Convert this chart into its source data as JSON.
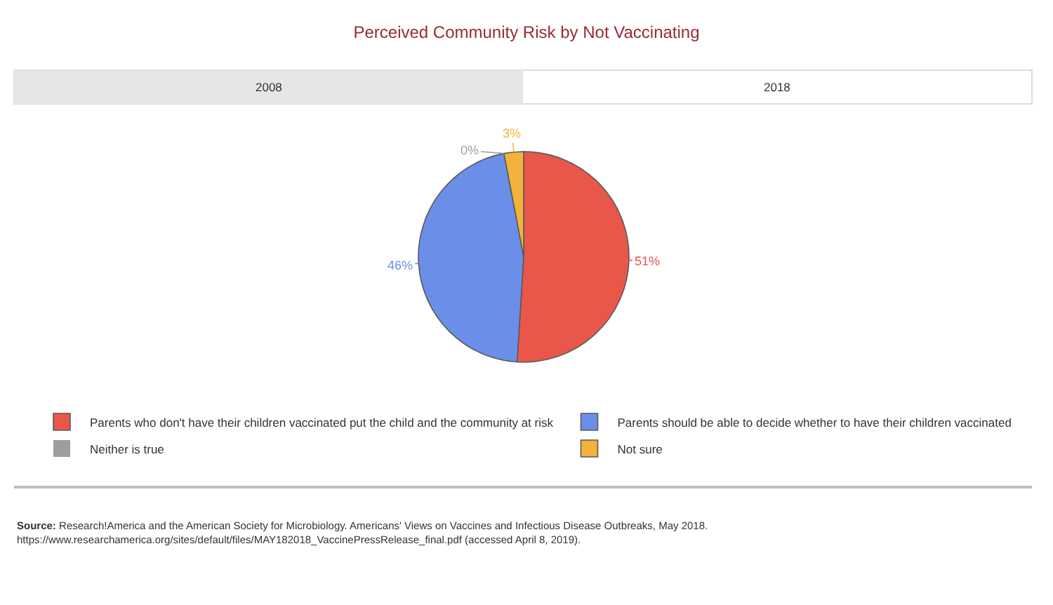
{
  "chart_data": {
    "type": "pie",
    "title": "Perceived Community Risk by Not Vaccinating",
    "categories": [
      "Parents who don't have their children vaccinated put the child and the community at risk",
      "Parents should be able to decide whether to have their children vaccinated",
      "Neither is true",
      "Not sure"
    ],
    "values": [
      51,
      46,
      0,
      3
    ],
    "colors": [
      "#e9574b",
      "#6b8fe8",
      "#9e9e9e",
      "#f3b23b"
    ],
    "value_labels": [
      "51%",
      "46%",
      "0%",
      "3%"
    ],
    "legend": "bottom",
    "annotations": [
      "2008",
      "2018",
      "Source: Research!America and the American Society for Microbiology. Americans' Views on Vaccines and Infectious Disease Outbreaks, May 2018. https://www.researchamerica.org/sites/default/files/MAY182018_VaccinePressRelease_final.pdf (accessed April 8, 2019)."
    ]
  }
}
